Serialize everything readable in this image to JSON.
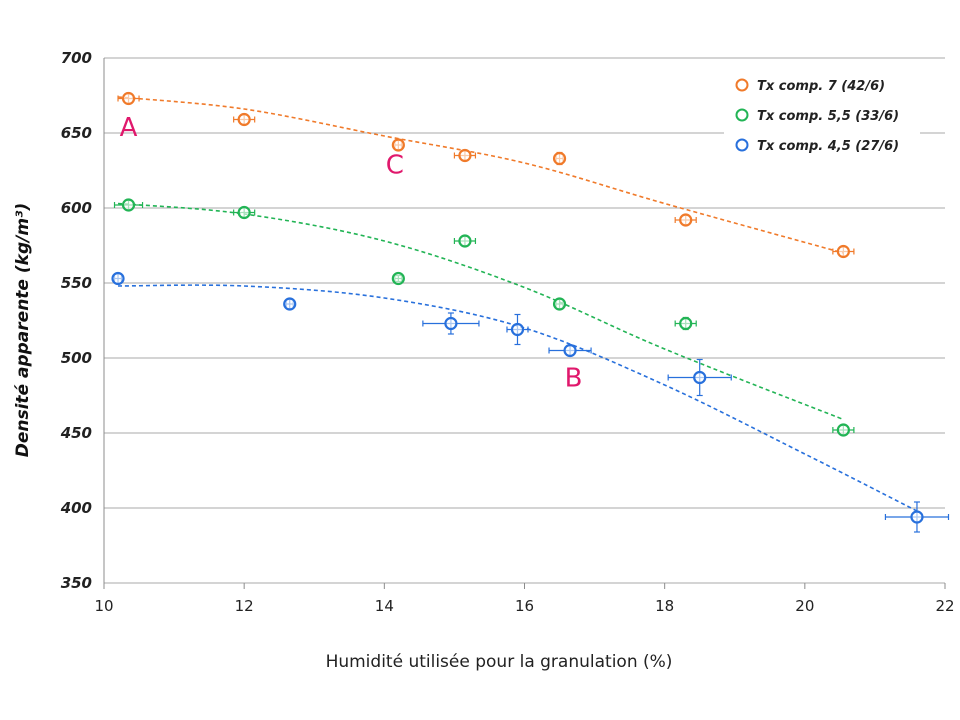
{
  "chart_data": {
    "type": "scatter",
    "title": "",
    "xlabel": "Humidité utilisée pour la granulation (%)",
    "ylabel": "Densité apparente (kg/m³)",
    "xlim": [
      10,
      22
    ],
    "ylim": [
      350,
      700
    ],
    "x_ticks": [
      "10",
      "12",
      "14",
      "16",
      "18",
      "20",
      "22"
    ],
    "y_ticks": [
      "350",
      "400",
      "450",
      "500",
      "550",
      "600",
      "650",
      "700"
    ],
    "grid": "horizontal",
    "legend_position": "top-right",
    "series": [
      {
        "name": "Tx comp. 7 (42/6)",
        "color": "#f07a2a",
        "points": [
          {
            "x": 10.35,
            "y": 673,
            "xerr": 0.15,
            "yerr": 3
          },
          {
            "x": 12.0,
            "y": 659,
            "xerr": 0.15,
            "yerr": 3
          },
          {
            "x": 14.2,
            "y": 642,
            "xerr": 0.05,
            "yerr": 3
          },
          {
            "x": 15.15,
            "y": 635,
            "xerr": 0.15,
            "yerr": 3
          },
          {
            "x": 16.5,
            "y": 633,
            "xerr": 0.05,
            "yerr": 4
          },
          {
            "x": 18.3,
            "y": 592,
            "xerr": 0.15,
            "yerr": 3
          },
          {
            "x": 20.55,
            "y": 571,
            "xerr": 0.15,
            "yerr": 3
          }
        ],
        "trend": [
          [
            10.2,
            674
          ],
          [
            12,
            666
          ],
          [
            14,
            648
          ],
          [
            16,
            630
          ],
          [
            18,
            603
          ],
          [
            20.55,
            570
          ]
        ]
      },
      {
        "name": "Tx comp. 5,5 (33/6)",
        "color": "#22b455",
        "points": [
          {
            "x": 10.35,
            "y": 602,
            "xerr": 0.2,
            "yerr": 3
          },
          {
            "x": 12.0,
            "y": 597,
            "xerr": 0.15,
            "yerr": 3
          },
          {
            "x": 14.2,
            "y": 553,
            "xerr": 0.05,
            "yerr": 2
          },
          {
            "x": 15.15,
            "y": 578,
            "xerr": 0.15,
            "yerr": 3
          },
          {
            "x": 16.5,
            "y": 536,
            "xerr": 0.05,
            "yerr": 3
          },
          {
            "x": 18.3,
            "y": 523,
            "xerr": 0.15,
            "yerr": 4
          },
          {
            "x": 20.55,
            "y": 452,
            "xerr": 0.15,
            "yerr": 3
          }
        ],
        "trend": [
          [
            10.2,
            603
          ],
          [
            12,
            596
          ],
          [
            14,
            578
          ],
          [
            16,
            547
          ],
          [
            18,
            506
          ],
          [
            20.55,
            459
          ]
        ]
      },
      {
        "name": "Tx comp. 4,5 (27/6)",
        "color": "#2870dc",
        "points": [
          {
            "x": 10.2,
            "y": 553,
            "xerr": 0.05,
            "yerr": 3
          },
          {
            "x": 12.65,
            "y": 536,
            "xerr": 0.05,
            "yerr": 3
          },
          {
            "x": 14.95,
            "y": 523,
            "xerr": 0.4,
            "yerr": 7
          },
          {
            "x": 15.9,
            "y": 519,
            "xerr": 0.15,
            "yerr": 10
          },
          {
            "x": 16.65,
            "y": 505,
            "xerr": 0.3,
            "yerr": 3
          },
          {
            "x": 18.5,
            "y": 487,
            "xerr": 0.45,
            "yerr": 12
          },
          {
            "x": 21.6,
            "y": 394,
            "xerr": 0.45,
            "yerr": 10
          }
        ],
        "trend": [
          [
            10.2,
            548
          ],
          [
            12,
            548
          ],
          [
            14,
            540
          ],
          [
            16,
            520
          ],
          [
            18,
            482
          ],
          [
            20,
            436
          ],
          [
            21.6,
            398
          ]
        ]
      }
    ],
    "annotations": [
      {
        "text": "A",
        "x": 10.35,
        "y": 648
      },
      {
        "text": "C",
        "x": 14.15,
        "y": 623
      },
      {
        "text": "B",
        "x": 16.7,
        "y": 481
      }
    ]
  }
}
